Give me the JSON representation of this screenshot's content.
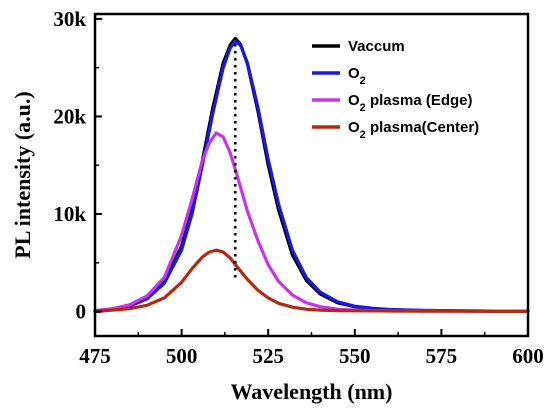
{
  "chart_data": {
    "type": "line",
    "title": "",
    "xlabel": "Wavelength (nm)",
    "ylabel": "PL intensity (a.u.)",
    "xlim": [
      475,
      600
    ],
    "ylim": [
      -2500,
      30500
    ],
    "xticks": [
      475,
      500,
      525,
      550,
      575,
      600
    ],
    "xtick_labels": [
      "475",
      "500",
      "525",
      "550",
      "575",
      "600"
    ],
    "yticks": [
      0,
      10000,
      20000,
      30000
    ],
    "ytick_labels": [
      "0",
      "10k",
      "20k",
      "30k"
    ],
    "grid": false,
    "legend_position": "top-right",
    "reference_line_x": 515.5,
    "series": [
      {
        "name": "Vaccum",
        "color": "#000000",
        "x": [
          475,
          480,
          485,
          490,
          495,
          500,
          503,
          506,
          509,
          512,
          514,
          515.5,
          517,
          519,
          522,
          525,
          528,
          532,
          536,
          540,
          545,
          550,
          555,
          560,
          570,
          580,
          590,
          600
        ],
        "y": [
          0,
          200,
          600,
          1400,
          3100,
          6700,
          10500,
          15500,
          20900,
          25500,
          27300,
          28000,
          27400,
          25400,
          20600,
          15000,
          10400,
          5800,
          3200,
          1800,
          900,
          500,
          300,
          200,
          100,
          80,
          50,
          30
        ]
      },
      {
        "name": "O_2",
        "color": "#1a1adf",
        "x": [
          475,
          480,
          485,
          490,
          495,
          500,
          503,
          506,
          509,
          512,
          514,
          515.5,
          517,
          519,
          522,
          525,
          528,
          532,
          536,
          540,
          545,
          550,
          555,
          560,
          570,
          580,
          590,
          600
        ],
        "y": [
          0,
          200,
          550,
          1300,
          2900,
          6300,
          10000,
          15000,
          20300,
          25000,
          27000,
          27700,
          27300,
          25500,
          21000,
          15600,
          11000,
          6300,
          3500,
          2000,
          1000,
          550,
          350,
          220,
          120,
          80,
          50,
          30
        ]
      },
      {
        "name": "O_2 plasma (Edge)",
        "color": "#cc33e6",
        "x": [
          475,
          480,
          485,
          490,
          495,
          500,
          503,
          506,
          508,
          510,
          512,
          514,
          516,
          519,
          522,
          525,
          528,
          532,
          536,
          540,
          545,
          550,
          555,
          560,
          570,
          580,
          590,
          600
        ],
        "y": [
          100,
          300,
          700,
          1600,
          3500,
          7800,
          11500,
          15500,
          17300,
          18300,
          17900,
          16300,
          14000,
          10300,
          7300,
          4800,
          3100,
          1700,
          900,
          500,
          250,
          150,
          100,
          80,
          60,
          50,
          40,
          30
        ]
      },
      {
        "name": "O_2 plasma(Center)",
        "color": "#b22a10",
        "x": [
          475,
          480,
          485,
          490,
          495,
          500,
          503,
          506,
          508,
          510,
          512,
          514,
          516,
          519,
          522,
          525,
          528,
          532,
          536,
          540,
          545,
          550,
          560,
          570,
          580,
          590,
          600
        ],
        "y": [
          50,
          150,
          300,
          650,
          1400,
          3000,
          4400,
          5600,
          6100,
          6300,
          6100,
          5500,
          4600,
          3300,
          2200,
          1400,
          850,
          450,
          250,
          150,
          100,
          80,
          60,
          50,
          40,
          30,
          20
        ]
      }
    ]
  }
}
